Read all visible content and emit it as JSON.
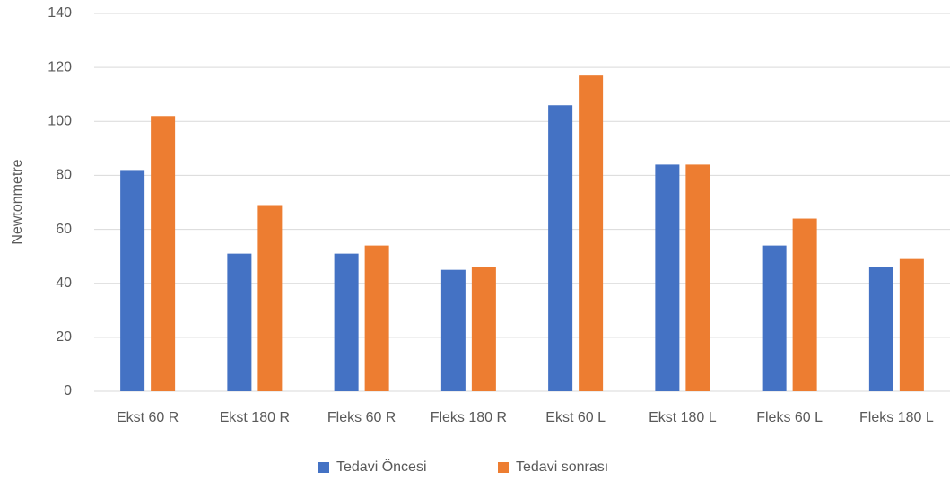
{
  "chart_data": {
    "type": "bar",
    "y_label": "Newtonmetre",
    "categories": [
      "Ekst 60 R",
      "Ekst 180 R",
      "Fleks 60 R",
      "Fleks 180 R",
      "Ekst 60 L",
      "Ekst 180 L",
      "Fleks 60 L",
      "Fleks 180 L"
    ],
    "series": [
      {
        "name": "Tedavi Öncesi",
        "color": "#4472c4",
        "values": [
          82,
          51,
          51,
          45,
          106,
          84,
          54,
          46
        ]
      },
      {
        "name": "Tedavi sonrası",
        "color": "#ed7d31",
        "values": [
          102,
          69,
          54,
          46,
          117,
          84,
          64,
          49
        ]
      }
    ],
    "ylim": [
      0,
      140
    ],
    "yticks": [
      0,
      20,
      40,
      60,
      80,
      100,
      120,
      140
    ],
    "grid": true,
    "legend": "bottom"
  }
}
